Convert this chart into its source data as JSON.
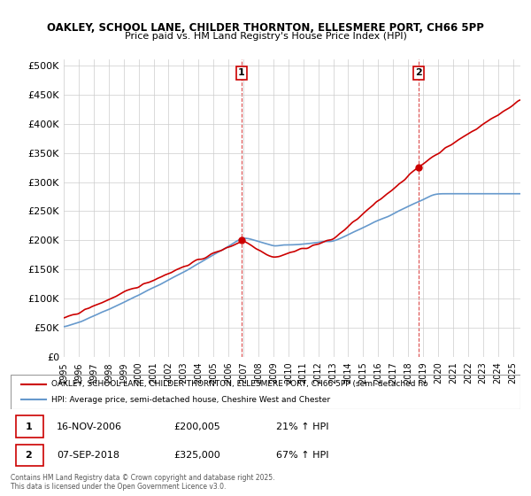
{
  "title_line1": "OAKLEY, SCHOOL LANE, CHILDER THORNTON, ELLESMERE PORT, CH66 5PP",
  "title_line2": "Price paid vs. HM Land Registry's House Price Index (HPI)",
  "ylabel_ticks": [
    "£0",
    "£50K",
    "£100K",
    "£150K",
    "£200K",
    "£250K",
    "£300K",
    "£350K",
    "£400K",
    "£450K",
    "£500K"
  ],
  "ytick_vals": [
    0,
    50000,
    100000,
    150000,
    200000,
    250000,
    300000,
    350000,
    400000,
    450000,
    500000
  ],
  "ylim": [
    0,
    510000
  ],
  "xlim_start": 1995.0,
  "xlim_end": 2025.5,
  "marker1_x": 2006.87,
  "marker1_y": 200005,
  "marker1_label": "1",
  "marker2_x": 2018.68,
  "marker2_y": 325000,
  "marker2_label": "2",
  "annotation1_date": "16-NOV-2006",
  "annotation1_price": "£200,005",
  "annotation1_hpi": "21% ↑ HPI",
  "annotation2_date": "07-SEP-2018",
  "annotation2_price": "£325,000",
  "annotation2_hpi": "67% ↑ HPI",
  "legend_line1": "OAKLEY, SCHOOL LANE, CHILDER THORNTON, ELLESMERE PORT, CH66 5PP (semi-detached ho",
  "legend_line2": "HPI: Average price, semi-detached house, Cheshire West and Chester",
  "footer": "Contains HM Land Registry data © Crown copyright and database right 2025.\nThis data is licensed under the Open Government Licence v3.0.",
  "line_color_red": "#cc0000",
  "line_color_blue": "#6699cc",
  "marker_color_red": "#cc0000",
  "background_color": "#ffffff",
  "grid_color": "#cccccc"
}
